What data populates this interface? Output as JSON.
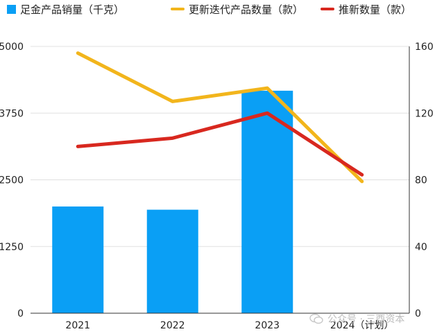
{
  "chart_data": {
    "type": "bar+line",
    "categories": [
      "2021",
      "2022",
      "2023",
      "2024（计划）"
    ],
    "bars": {
      "name": "足金产品销量（千克）",
      "axis": "left",
      "color": "#0a9ff5",
      "values": [
        2000,
        1940,
        4170,
        null
      ]
    },
    "lines": [
      {
        "name": "更新迭代产品数量（款）",
        "axis": "right",
        "color": "#f2b51c",
        "values": [
          156,
          127,
          135,
          79
        ]
      },
      {
        "name": "推新数量（款）",
        "axis": "right",
        "color": "#d8281f",
        "values": [
          100,
          105,
          120,
          83
        ]
      }
    ],
    "y_left": {
      "range": [
        0,
        5000
      ],
      "ticks": [
        "0",
        "1250",
        "2500",
        "3750",
        "5000"
      ]
    },
    "y_right": {
      "range": [
        0,
        160
      ],
      "ticks": [
        "0",
        "40",
        "80",
        "120",
        "160"
      ]
    },
    "grid": true,
    "legend_position": "top"
  },
  "watermark": {
    "text": "公众号 · 三酉资本"
  }
}
